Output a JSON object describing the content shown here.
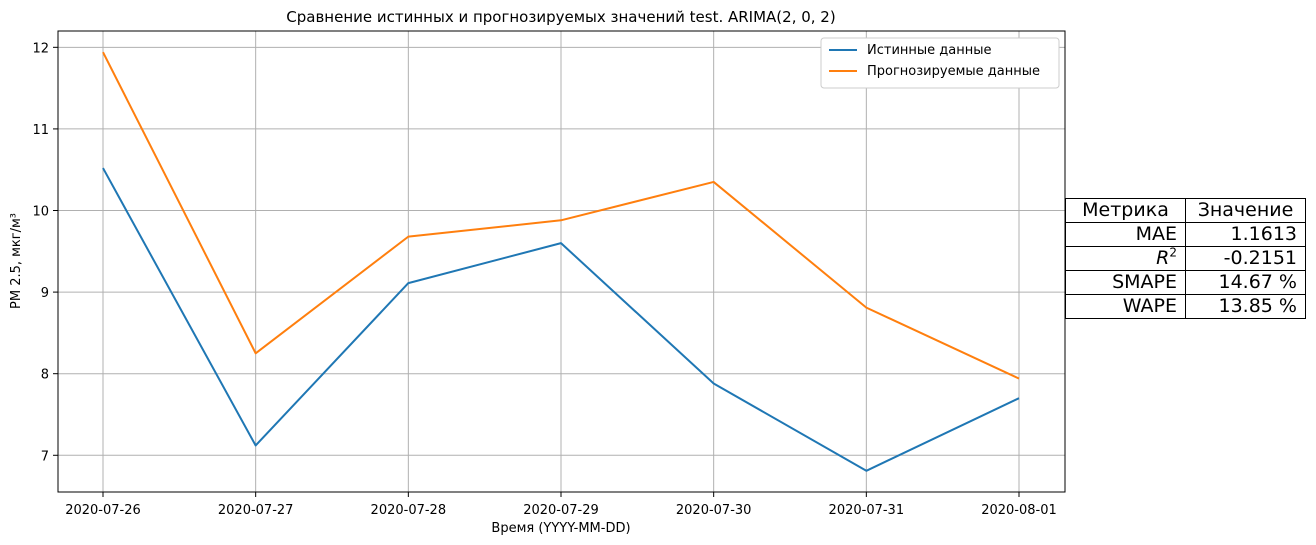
{
  "chart_data": {
    "type": "line",
    "title": "Сравнение истинных и прогнозируемых значений test. ARIMA(2, 0, 2)",
    "xlabel": "Время (YYYY-MM-DD)",
    "ylabel": "PM 2.5, мкг/м³",
    "x": [
      "2020-07-26",
      "2020-07-27",
      "2020-07-28",
      "2020-07-29",
      "2020-07-30",
      "2020-07-31",
      "2020-08-01"
    ],
    "yticks": [
      7,
      8,
      9,
      10,
      11,
      12
    ],
    "ylim": [
      6.55,
      12.2
    ],
    "grid": true,
    "legend": "top-right",
    "series": [
      {
        "name": "Истинные данные",
        "color": "#1f77b4",
        "values": [
          10.52,
          7.12,
          9.11,
          9.6,
          7.88,
          6.81,
          7.7
        ]
      },
      {
        "name": "Прогнозируемые данные",
        "color": "#ff7f0e",
        "values": [
          11.94,
          8.25,
          9.68,
          9.88,
          10.35,
          8.81,
          7.94
        ]
      }
    ]
  },
  "metrics_table": {
    "headers": [
      "Метрика",
      "Значение"
    ],
    "rows": [
      {
        "name": "MAE",
        "value": "1.1613"
      },
      {
        "name": "R",
        "sup": "2",
        "value": "-0.2151"
      },
      {
        "name": "SMAPE",
        "value": "14.67 %"
      },
      {
        "name": "WAPE",
        "value": "13.85 %"
      }
    ]
  }
}
